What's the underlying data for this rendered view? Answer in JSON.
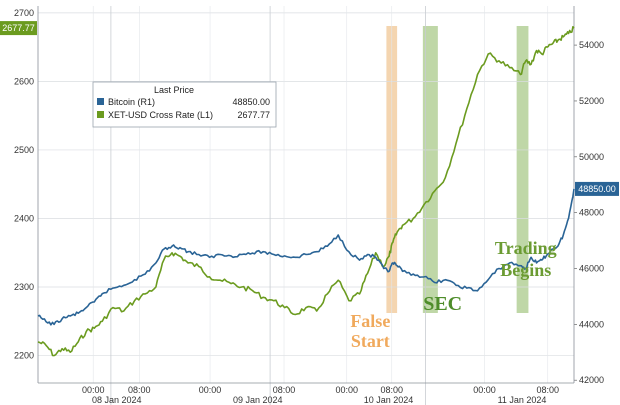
{
  "chart_data": {
    "type": "line",
    "legend": {
      "title": "Last Price",
      "placement": "top-left",
      "entries": [
        {
          "label": "Bitcoin  (R1)",
          "value": "48850.00"
        },
        {
          "label": "XET-USD Cross Rate  (L1)",
          "value": "2677.77"
        }
      ]
    },
    "y_left": {
      "ticks": [
        "2200",
        "2300",
        "2400",
        "2500",
        "2600",
        "2700"
      ],
      "range": [
        2160,
        2710
      ]
    },
    "y_right": {
      "ticks": [
        "42000",
        "44000",
        "46000",
        "48000",
        "50000",
        "52000",
        "54000"
      ],
      "range": [
        41900,
        55400
      ]
    },
    "x_time_labels": [
      "00:00",
      "08:00",
      "00:00",
      "08:00",
      "00:00",
      "08:00",
      "00:00",
      "08:00"
    ],
    "x_date_labels": [
      "08 Jan 2024",
      "09 Jan 2024",
      "10 Jan 2024",
      "11 Jan 2024"
    ],
    "x_range": [
      0,
      100
    ],
    "grid": true,
    "last_value_badges": {
      "left": "2677.77",
      "right": "48850.00"
    },
    "highlights": [
      {
        "from": 65.0,
        "to": 67.0,
        "color": "#f0c796"
      },
      {
        "from": 71.8,
        "to": 74.6,
        "color": "#a9c98a"
      },
      {
        "from": 89.3,
        "to": 91.5,
        "color": "#a9c98a"
      }
    ],
    "annotations": [
      {
        "lines": [
          "False",
          "Start"
        ],
        "color": "#f0a95c",
        "anchor_x": 62.0
      },
      {
        "lines": [
          "SEC"
        ],
        "color": "#4e8d2a",
        "anchor_x": 75.5
      },
      {
        "lines": [
          "Trading",
          "Begins"
        ],
        "color": "#6b9b32",
        "anchor_x": 91.0
      }
    ],
    "series": [
      {
        "name": "XET-USD Cross Rate (L1)",
        "color": "#6b9b1f",
        "axis": "left",
        "x": [
          0,
          1.5,
          3,
          4.5,
          6,
          7.5,
          9,
          10.5,
          12,
          14,
          16,
          18,
          20,
          22,
          23.5,
          25,
          26.5,
          28,
          30,
          32,
          34,
          36,
          38,
          40,
          42,
          44,
          46,
          48,
          50,
          52,
          54,
          56,
          58,
          60,
          61.5,
          63,
          64.5,
          65.5,
          66.2,
          67,
          68,
          70,
          72,
          74,
          76,
          78,
          80,
          82,
          84,
          86,
          88,
          90,
          91,
          92,
          93,
          94,
          95,
          96,
          97,
          98,
          99,
          100
        ],
        "y": [
          2220,
          2215,
          2200,
          2210,
          2205,
          2220,
          2235,
          2240,
          2250,
          2270,
          2265,
          2280,
          2290,
          2300,
          2340,
          2350,
          2345,
          2335,
          2330,
          2315,
          2310,
          2305,
          2300,
          2295,
          2285,
          2280,
          2270,
          2260,
          2270,
          2265,
          2290,
          2310,
          2280,
          2290,
          2320,
          2350,
          2330,
          2345,
          2365,
          2380,
          2390,
          2400,
          2420,
          2440,
          2460,
          2510,
          2560,
          2610,
          2640,
          2630,
          2620,
          2610,
          2630,
          2625,
          2645,
          2640,
          2650,
          2655,
          2660,
          2665,
          2670,
          2677.77
        ]
      },
      {
        "name": "Bitcoin (R1)",
        "color": "#2a6496",
        "axis": "right",
        "x": [
          0,
          1.5,
          3,
          4.5,
          6,
          7.5,
          9,
          10.5,
          12,
          14,
          16,
          18,
          20,
          22,
          23.5,
          25,
          26.5,
          28,
          30,
          32,
          34,
          36,
          38,
          40,
          42,
          44,
          46,
          48,
          50,
          52,
          54,
          56,
          58,
          60,
          61.5,
          63,
          64.5,
          65.5,
          66.2,
          67,
          68,
          70,
          72,
          74,
          76,
          78,
          80,
          82,
          84,
          86,
          88,
          90,
          91,
          92,
          93,
          94,
          95,
          96,
          97,
          98,
          99,
          100
        ],
        "y": [
          44300,
          44100,
          44000,
          44200,
          44300,
          44400,
          44600,
          44800,
          45100,
          45300,
          45400,
          45600,
          45800,
          46200,
          46700,
          46800,
          46750,
          46600,
          46500,
          46400,
          46500,
          46450,
          46500,
          46550,
          46600,
          46500,
          46450,
          46400,
          46500,
          46600,
          46800,
          47200,
          46600,
          46300,
          46500,
          46400,
          46000,
          45900,
          46200,
          46100,
          45900,
          45800,
          45700,
          45500,
          45600,
          45400,
          45300,
          45200,
          45600,
          46000,
          46200,
          46100,
          46000,
          46400,
          46200,
          46300,
          46500,
          46700,
          46800,
          47200,
          47800,
          48850
        ]
      }
    ]
  }
}
